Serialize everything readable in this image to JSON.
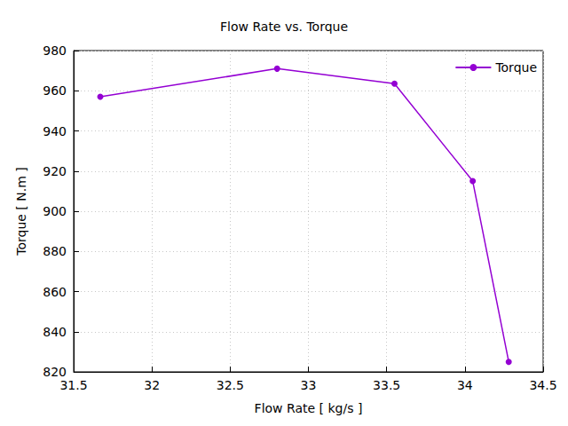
{
  "chart_data": {
    "type": "line",
    "title": "Flow Rate vs. Torque",
    "x_label": "Flow Rate [ kg/s ]",
    "y_label": "Torque [ N.m ]",
    "x": [
      31.67,
      32.8,
      33.55,
      34.05,
      34.28
    ],
    "series": [
      {
        "name": "Torque",
        "color": "#9400d3",
        "values": [
          957,
          971,
          963.5,
          915,
          825
        ]
      }
    ],
    "xlim": [
      31.5,
      34.5
    ],
    "xticks": [
      31.5,
      32,
      32.5,
      33,
      33.5,
      34,
      34.5
    ],
    "ylim": [
      820,
      980
    ],
    "yticks": [
      820,
      840,
      860,
      880,
      900,
      920,
      940,
      960,
      980
    ],
    "grid": true,
    "legend": "upper right",
    "marker": "circle",
    "line_style": "solid"
  }
}
